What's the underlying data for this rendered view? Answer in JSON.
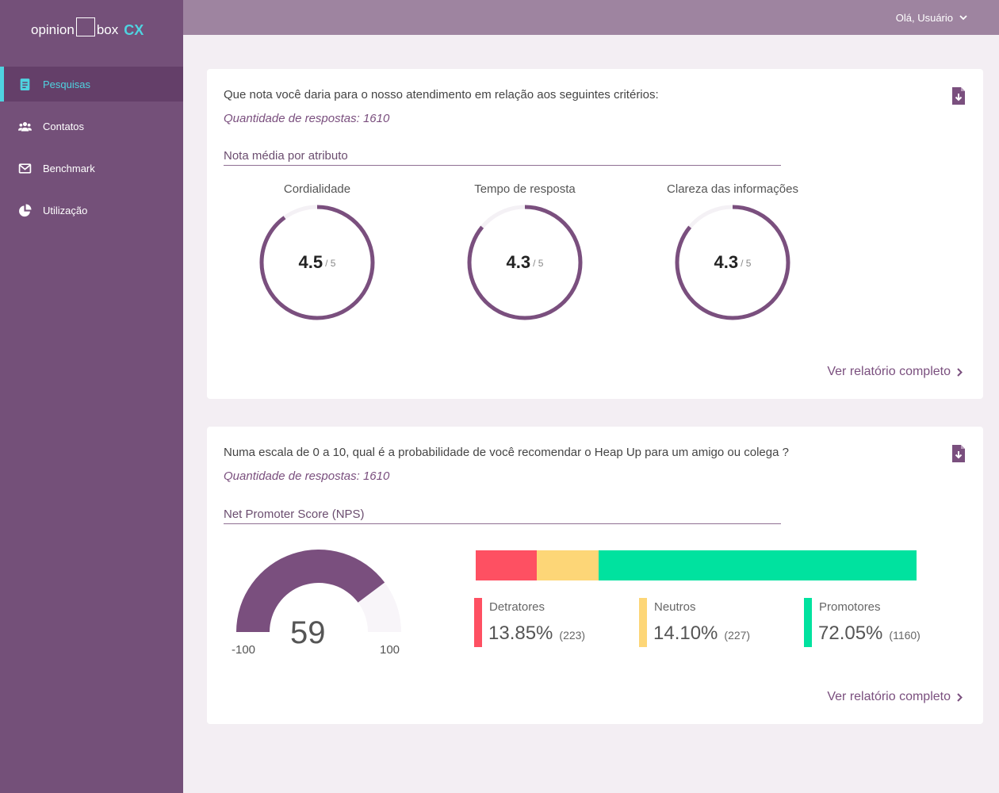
{
  "app": {
    "logo": {
      "word1": "opinion",
      "word2": "box",
      "suffix": "CX"
    },
    "user_greeting": "Olá, Usuário"
  },
  "sidebar": {
    "items": [
      {
        "label": "Pesquisas",
        "icon": "document-icon",
        "active": true
      },
      {
        "label": "Contatos",
        "icon": "users-icon",
        "active": false
      },
      {
        "label": "Benchmark",
        "icon": "mail-icon",
        "active": false
      },
      {
        "label": "Utilização",
        "icon": "pie-chart-icon",
        "active": false
      }
    ]
  },
  "colors": {
    "brand": "#745079",
    "accent": "#4fd3e0",
    "donut": "#7a4f7e",
    "detractors": "#fe5062",
    "neutrals": "#fdd677",
    "promoters": "#00e29f"
  },
  "card1": {
    "question": "Que nota você daria para o nosso atendimento em relação aos seguintes critérios:",
    "count": "Quantidade de respostas: 1610",
    "section": "Nota média por atributo",
    "attributes": [
      {
        "label": "Cordialidade",
        "score": "4.5",
        "max": "/ 5"
      },
      {
        "label": "Tempo de resposta",
        "score": "4.3",
        "max": "/ 5"
      },
      {
        "label": "Clareza das informações",
        "score": "4.3",
        "max": "/ 5"
      }
    ],
    "report_link": "Ver relatório completo"
  },
  "card2": {
    "question": "Numa escala de 0 a 10, qual é a probabilidade de você recomendar o Heap Up para um amigo ou colega ?",
    "count": "Quantidade de respostas: 1610",
    "section": "Net Promoter Score (NPS)",
    "nps": {
      "score": "59",
      "min": "-100",
      "max": "100"
    },
    "groups": [
      {
        "label": "Detratores",
        "percent": "13.85%",
        "count": "(223)"
      },
      {
        "label": "Neutros",
        "percent": "14.10%",
        "count": "(227)"
      },
      {
        "label": "Promotores",
        "percent": "72.05%",
        "count": "(1160)"
      }
    ],
    "report_link": "Ver relatório completo"
  }
}
